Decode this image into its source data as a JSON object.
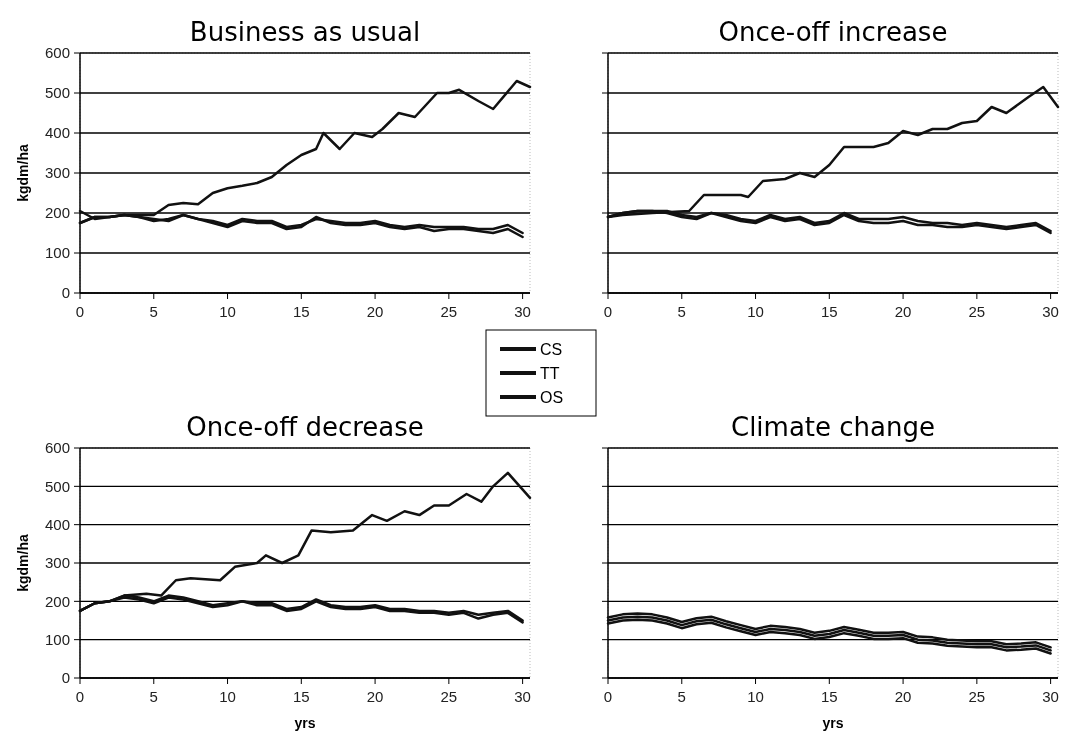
{
  "chart_data": [
    {
      "type": "line",
      "title": "Business as usual",
      "ylabel": "kgdm/ha",
      "xlim": [
        0,
        30.5
      ],
      "xticks": [
        0,
        5,
        10,
        15,
        20,
        25,
        30
      ],
      "ylim": [
        0,
        600
      ],
      "yticks": [
        0,
        100,
        200,
        300,
        400,
        500,
        600
      ],
      "grid": "y",
      "legend": "bottom right",
      "line_style": "solid",
      "marker": "none",
      "series": [
        {
          "name": "CS",
          "color": "#111111",
          "x": [
            0,
            1,
            2,
            3,
            4,
            5,
            6,
            7,
            8,
            9,
            10,
            11,
            12,
            13,
            14,
            15,
            16,
            16.5,
            17.6,
            18.6,
            19.8,
            20.5,
            21.6,
            22.7,
            24.2,
            25,
            25.7,
            27,
            28,
            29.6,
            30.5
          ],
          "values": [
            175,
            190,
            190,
            195,
            195,
            195,
            220,
            225,
            222,
            250,
            262,
            268,
            275,
            290,
            320,
            345,
            360,
            400,
            360,
            400,
            390,
            410,
            450,
            440,
            500,
            500,
            508,
            480,
            460,
            530,
            515
          ]
        },
        {
          "name": "TT",
          "color": "#111111",
          "x": [
            0,
            1,
            2,
            3,
            4,
            5,
            6,
            7,
            8,
            9,
            10,
            11,
            12,
            13,
            14,
            15,
            16,
            17,
            18,
            19,
            20,
            21,
            22,
            23,
            24,
            25,
            26,
            27,
            28,
            29,
            30
          ],
          "values": [
            205,
            185,
            190,
            195,
            190,
            185,
            180,
            195,
            185,
            175,
            165,
            180,
            175,
            175,
            160,
            165,
            190,
            175,
            170,
            170,
            175,
            165,
            160,
            165,
            155,
            160,
            160,
            155,
            150,
            160,
            140
          ]
        },
        {
          "name": "OS",
          "color": "#111111",
          "x": [
            0,
            1,
            2,
            3,
            4,
            5,
            6,
            7,
            8,
            9,
            10,
            11,
            12,
            13,
            14,
            15,
            16,
            17,
            18,
            19,
            20,
            21,
            22,
            23,
            24,
            25,
            26,
            27,
            28,
            29,
            30
          ],
          "values": [
            175,
            190,
            190,
            195,
            190,
            180,
            185,
            195,
            185,
            180,
            170,
            185,
            180,
            180,
            165,
            170,
            185,
            180,
            175,
            175,
            180,
            170,
            165,
            170,
            165,
            165,
            165,
            160,
            160,
            170,
            150
          ]
        }
      ]
    },
    {
      "type": "line",
      "title": "Once-off increase",
      "xlim": [
        0,
        30.5
      ],
      "xticks": [
        0,
        5,
        10,
        15,
        20,
        25,
        30
      ],
      "ylim": [
        0,
        600
      ],
      "yticks": [
        0,
        100,
        200,
        300,
        400,
        500,
        600
      ],
      "grid": "y",
      "tick_labels": "x",
      "line_style": "solid",
      "marker": "none",
      "series": [
        {
          "color": "#111111",
          "x": [
            0,
            1,
            3,
            5.5,
            6.5,
            9,
            9.5,
            10.5,
            12,
            13,
            14,
            15,
            16,
            18,
            19,
            20,
            21,
            22,
            23,
            24,
            25,
            26,
            27,
            28.5,
            29.5,
            30.5
          ],
          "values": [
            190,
            195,
            200,
            205,
            245,
            245,
            240,
            280,
            285,
            300,
            290,
            320,
            365,
            365,
            375,
            405,
            395,
            410,
            410,
            425,
            430,
            465,
            450,
            490,
            515,
            465
          ]
        },
        {
          "color": "#111111",
          "x": [
            0,
            1,
            2,
            3,
            4,
            5,
            6,
            7,
            8,
            9,
            10,
            11,
            12,
            13,
            14,
            15,
            16,
            17,
            18,
            19,
            20,
            21,
            22,
            23,
            24,
            25,
            26,
            27,
            28,
            29,
            30
          ],
          "values": [
            190,
            200,
            205,
            205,
            200,
            190,
            185,
            200,
            190,
            180,
            175,
            190,
            180,
            185,
            170,
            175,
            195,
            180,
            175,
            175,
            180,
            170,
            170,
            165,
            165,
            170,
            165,
            160,
            165,
            170,
            150
          ]
        },
        {
          "color": "#111111",
          "x": [
            0,
            1,
            2,
            3,
            4,
            5,
            6,
            7,
            8,
            9,
            10,
            11,
            12,
            13,
            14,
            15,
            16,
            17,
            18,
            19,
            20,
            21,
            22,
            23,
            24,
            25,
            26,
            27,
            28,
            29,
            30
          ],
          "values": [
            190,
            200,
            205,
            205,
            205,
            195,
            190,
            200,
            195,
            185,
            180,
            195,
            185,
            190,
            175,
            180,
            200,
            185,
            185,
            185,
            190,
            180,
            175,
            175,
            170,
            175,
            170,
            165,
            170,
            175,
            155
          ]
        }
      ]
    },
    {
      "type": "line",
      "title": "Once-off decrease",
      "xlabel": "yrs",
      "ylabel": "kgdm/ha",
      "xlim": [
        0,
        30.5
      ],
      "xticks": [
        0,
        5,
        10,
        15,
        20,
        25,
        30
      ],
      "ylim": [
        0,
        600
      ],
      "yticks": [
        0,
        100,
        200,
        300,
        400,
        500,
        600
      ],
      "grid": "y",
      "line_style": "solid",
      "marker": "none",
      "series": [
        {
          "color": "#111111",
          "x": [
            0,
            1,
            2,
            3,
            4.5,
            5.5,
            6.5,
            7.5,
            9.5,
            10.5,
            12,
            12.6,
            13.7,
            14.8,
            15.7,
            17,
            18.5,
            19.8,
            20.8,
            22,
            23,
            24,
            25,
            26.2,
            27.2,
            28,
            29,
            30.5
          ],
          "values": [
            175,
            195,
            200,
            215,
            220,
            215,
            255,
            260,
            255,
            290,
            300,
            320,
            300,
            320,
            385,
            380,
            385,
            425,
            410,
            435,
            425,
            450,
            450,
            480,
            460,
            500,
            535,
            470
          ]
        },
        {
          "color": "#111111",
          "x": [
            0,
            1,
            2,
            3,
            4,
            5,
            6,
            7,
            8,
            9,
            10,
            11,
            12,
            13,
            14,
            15,
            16,
            17,
            18,
            19,
            20,
            21,
            22,
            23,
            24,
            25,
            26,
            27,
            28,
            29,
            30
          ],
          "values": [
            175,
            195,
            200,
            210,
            205,
            195,
            210,
            205,
            195,
            185,
            190,
            200,
            190,
            190,
            175,
            180,
            200,
            185,
            180,
            180,
            185,
            175,
            175,
            170,
            170,
            165,
            170,
            155,
            165,
            170,
            145
          ]
        },
        {
          "color": "#111111",
          "x": [
            0,
            1,
            2,
            3,
            4,
            5,
            6,
            7,
            8,
            9,
            10,
            11,
            12,
            13,
            14,
            15,
            16,
            17,
            18,
            19,
            20,
            21,
            22,
            23,
            24,
            25,
            26,
            27,
            28,
            29,
            30
          ],
          "values": [
            175,
            195,
            200,
            215,
            210,
            200,
            215,
            210,
            200,
            190,
            195,
            200,
            195,
            195,
            180,
            185,
            205,
            190,
            185,
            185,
            190,
            180,
            180,
            175,
            175,
            170,
            175,
            165,
            170,
            175,
            150
          ]
        }
      ]
    },
    {
      "type": "line",
      "title": "Climate change",
      "xlabel": "yrs",
      "xlim": [
        0,
        30.5
      ],
      "xticks": [
        0,
        5,
        10,
        15,
        20,
        25,
        30
      ],
      "ylim": [
        0,
        600
      ],
      "yticks": [
        0,
        100,
        200,
        300,
        400,
        500,
        600
      ],
      "grid": "y",
      "tick_labels": "x",
      "line_style": "solid",
      "marker": "none",
      "series": [
        {
          "color": "#111111",
          "x": [
            0,
            1,
            2,
            3,
            4,
            5,
            6,
            7,
            8,
            9,
            10,
            11,
            12,
            13,
            14,
            15,
            16,
            17,
            18,
            19,
            20,
            21,
            22,
            23,
            24,
            25,
            26,
            27,
            28,
            29,
            30
          ],
          "values": [
            142,
            150,
            152,
            150,
            142,
            130,
            140,
            144,
            132,
            122,
            112,
            120,
            117,
            112,
            102,
            107,
            117,
            110,
            102,
            102,
            104,
            92,
            90,
            84,
            82,
            80,
            80,
            72,
            74,
            77,
            64
          ]
        },
        {
          "color": "#111111",
          "x": [
            0,
            1,
            2,
            3,
            4,
            5,
            6,
            7,
            8,
            9,
            10,
            11,
            12,
            13,
            14,
            15,
            16,
            17,
            18,
            19,
            20,
            21,
            22,
            23,
            24,
            25,
            26,
            27,
            28,
            29,
            30
          ],
          "values": [
            150,
            158,
            160,
            158,
            150,
            138,
            148,
            152,
            140,
            130,
            120,
            128,
            125,
            120,
            110,
            115,
            125,
            118,
            110,
            110,
            112,
            100,
            98,
            92,
            90,
            88,
            88,
            80,
            82,
            85,
            72
          ]
        },
        {
          "color": "#111111",
          "x": [
            0,
            1,
            2,
            3,
            4,
            5,
            6,
            7,
            8,
            9,
            10,
            11,
            12,
            13,
            14,
            15,
            16,
            17,
            18,
            19,
            20,
            21,
            22,
            23,
            24,
            25,
            26,
            27,
            28,
            29,
            30
          ],
          "values": [
            158,
            166,
            168,
            166,
            158,
            146,
            156,
            160,
            148,
            138,
            128,
            136,
            133,
            128,
            118,
            123,
            133,
            126,
            118,
            118,
            120,
            108,
            106,
            100,
            98,
            96,
            96,
            88,
            90,
            93,
            80
          ]
        }
      ]
    }
  ]
}
